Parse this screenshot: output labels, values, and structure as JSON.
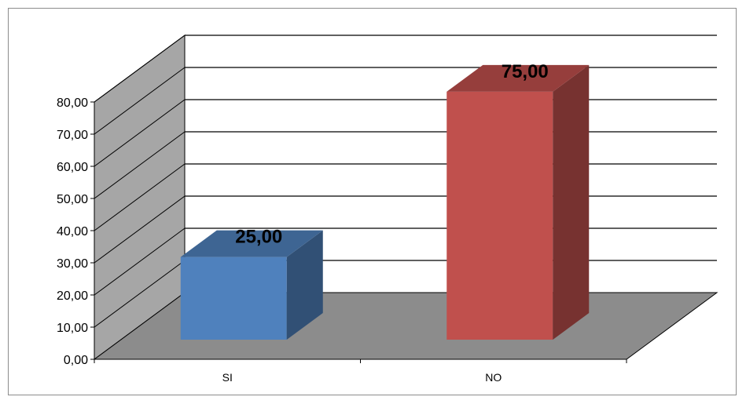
{
  "chart_data": {
    "type": "bar",
    "style": "3d-column",
    "categories": [
      "SI",
      "NO"
    ],
    "values": [
      25.0,
      75.0
    ],
    "data_labels": [
      "25,00",
      "75,00"
    ],
    "ylim": [
      0,
      80
    ],
    "y_ticks": [
      "0,00",
      "10,00",
      "20,00",
      "30,00",
      "40,00",
      "50,00",
      "60,00",
      "70,00",
      "80,00"
    ],
    "title": "",
    "xlabel": "",
    "ylabel": "",
    "grid": true,
    "legend": "none",
    "colors": {
      "bars": [
        "#4f81bd",
        "#c0504d"
      ],
      "floor": "#8c8c8c",
      "side_wall": "#a6a6a6",
      "back_wall": "#ffffff"
    }
  }
}
